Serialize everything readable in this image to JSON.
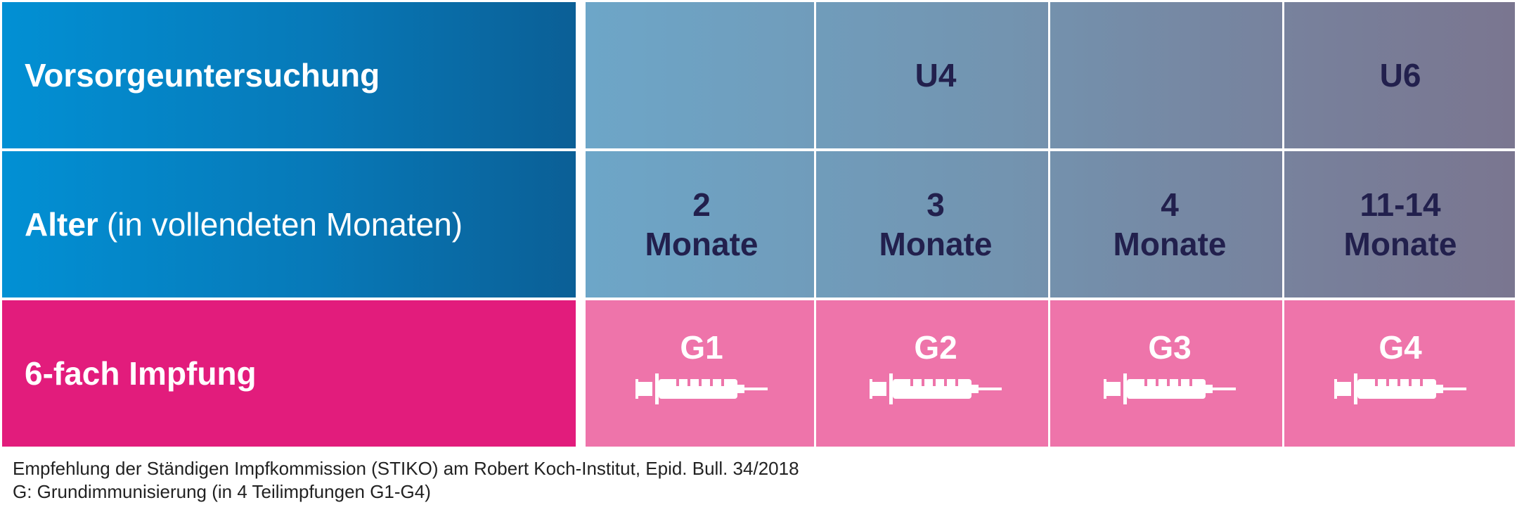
{
  "rows": {
    "checkup": {
      "label": "Vorsorgeuntersuchung",
      "cells": [
        "",
        "U4",
        "",
        "U6"
      ]
    },
    "age": {
      "label_bold": "Alter",
      "label_light": "(in vollendeten Monaten)",
      "cells": [
        {
          "number": "2",
          "unit": "Monate"
        },
        {
          "number": "3",
          "unit": "Monate"
        },
        {
          "number": "4",
          "unit": "Monate"
        },
        {
          "number": "11-14",
          "unit": "Monate"
        }
      ]
    },
    "vaccine": {
      "label": "6-fach Impfung",
      "cells": [
        "G1",
        "G2",
        "G3",
        "G4"
      ],
      "icon": "syringe-icon"
    }
  },
  "footnotes": {
    "source": "Empfehlung der Ständigen Impfkommission (STIKO) am Robert Koch-Institut, Epid. Bull. 34/2018",
    "legend": "G: Grundimmunisierung (in 4 Teilimpfungen G1-G4)"
  },
  "colors": {
    "label_blue": "#0779b8",
    "label_pink": "#e21c7c",
    "cell_blue_gray": "#7394b0",
    "cell_pink": "#ee74aa",
    "text_dark": "#22204d"
  }
}
